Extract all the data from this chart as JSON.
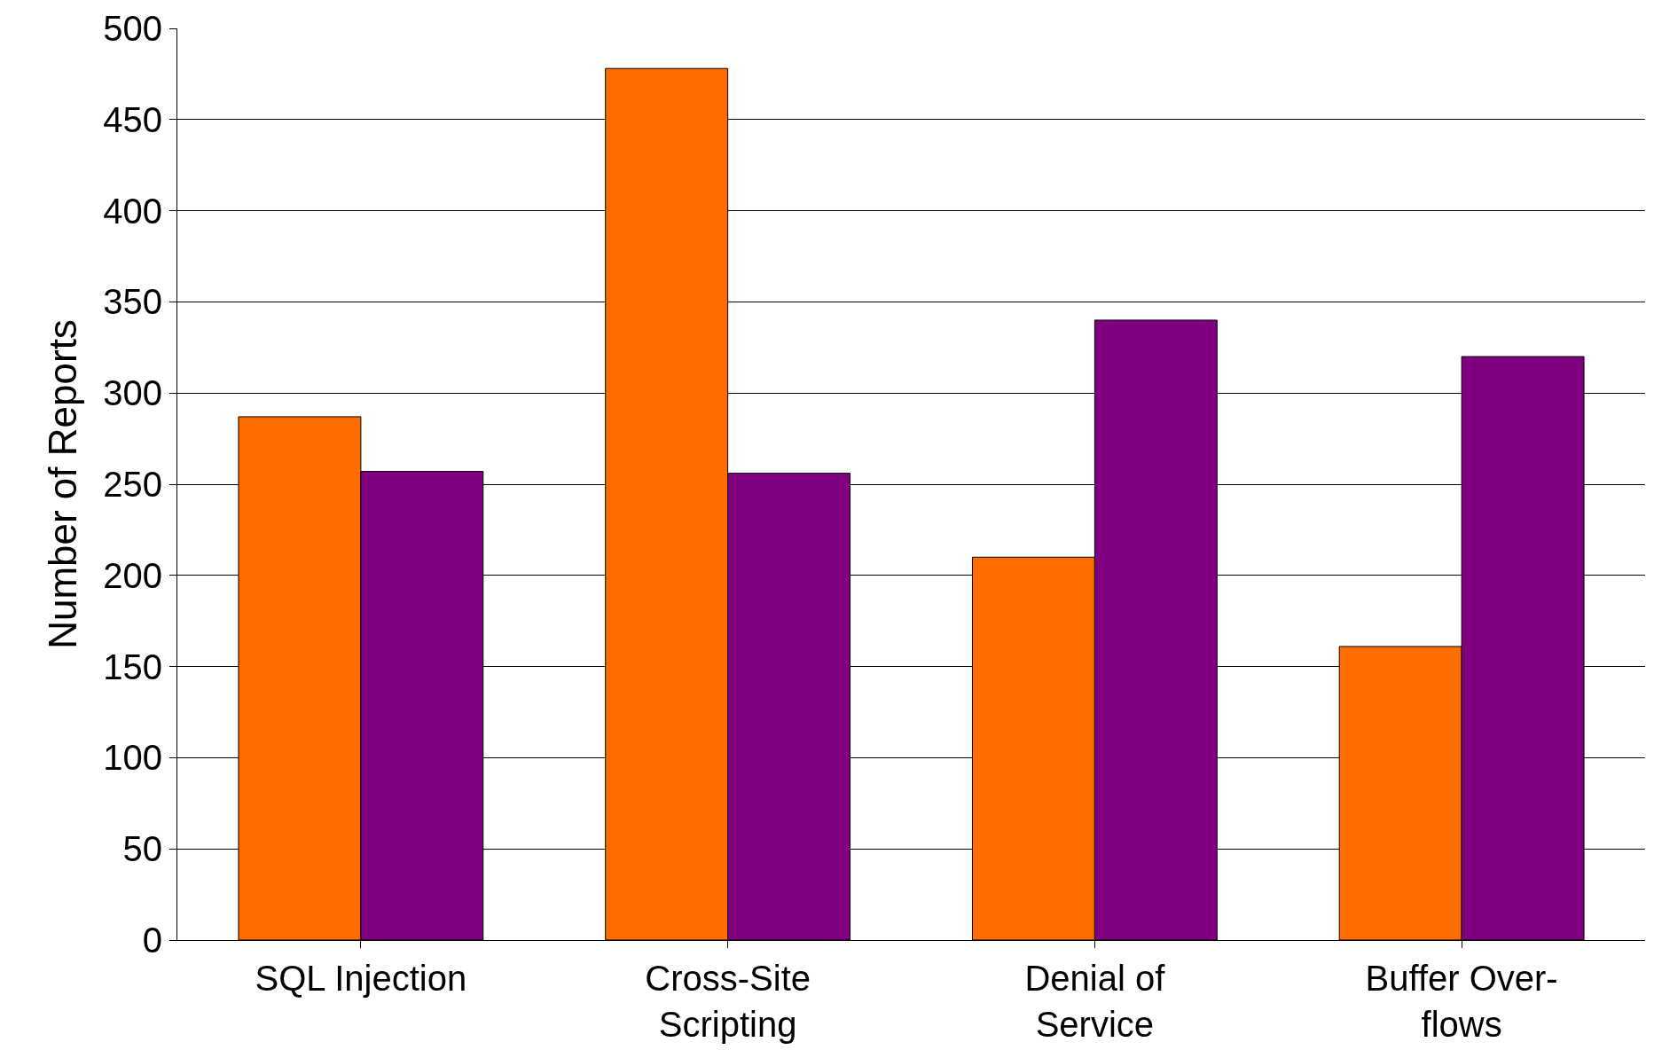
{
  "chart_data": {
    "type": "bar",
    "ylabel": "Number of Reports",
    "categories": [
      "SQL Injection",
      "Cross-Site\nScripting",
      "Denial of\nService",
      "Buffer Over-\nflows"
    ],
    "series": [
      {
        "color": "#ff6d00",
        "values": [
          287,
          478,
          210,
          161
        ]
      },
      {
        "color": "#800080",
        "values": [
          257,
          256,
          340,
          320
        ]
      }
    ],
    "ylim": [
      0,
      500
    ],
    "yticks": [
      0,
      50,
      100,
      150,
      200,
      250,
      300,
      350,
      400,
      450,
      500
    ],
    "grid": "y",
    "legend": false
  }
}
